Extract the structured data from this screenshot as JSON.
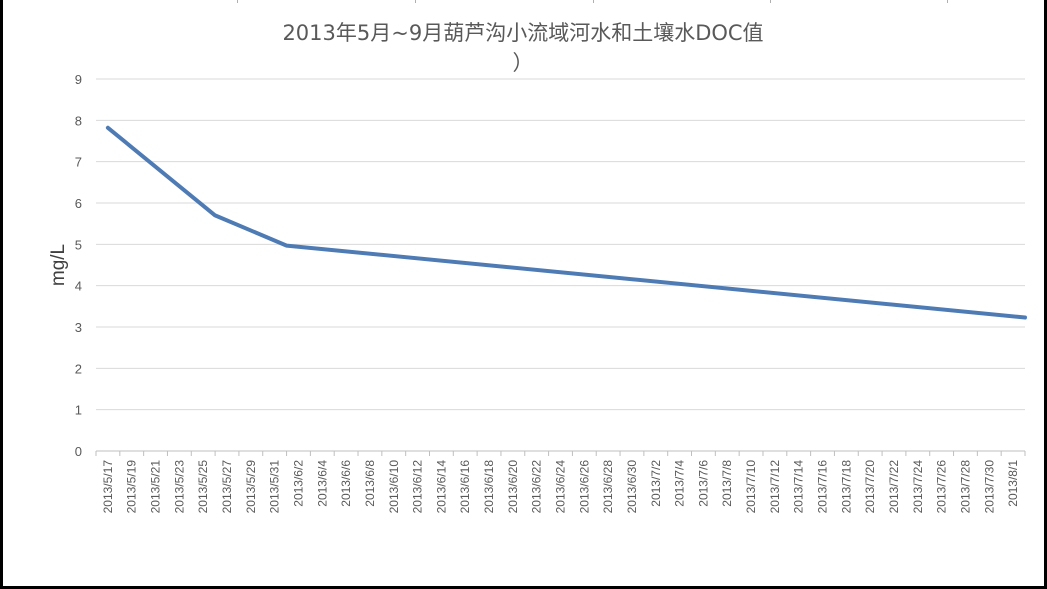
{
  "chart_data": {
    "type": "line",
    "title": "2013年5月~9月葫芦沟小流域河水和土壤水DOC值（ ）",
    "title_lines": [
      "2013年5月~9月葫芦沟小流域河水和土壤水DOC值",
      "）"
    ],
    "xlabel": "",
    "ylabel": "mg/L",
    "ylim": [
      0,
      9
    ],
    "yticks": [
      0,
      1,
      2,
      3,
      4,
      5,
      6,
      7,
      8,
      9
    ],
    "grid": true,
    "legend": "none",
    "categories": [
      "2013/5/17",
      "2013/5/19",
      "2013/5/21",
      "2013/5/23",
      "2013/5/25",
      "2013/5/27",
      "2013/5/29",
      "2013/5/31",
      "2013/6/2",
      "2013/6/4",
      "2013/6/6",
      "2013/6/8",
      "2013/6/10",
      "2013/6/12",
      "2013/6/14",
      "2013/6/16",
      "2013/6/18",
      "2013/6/20",
      "2013/6/22",
      "2013/6/24",
      "2013/6/26",
      "2013/6/28",
      "2013/6/30",
      "2013/7/2",
      "2013/7/4",
      "2013/7/6",
      "2013/7/8",
      "2013/7/10",
      "2013/7/12",
      "2013/7/14",
      "2013/7/16",
      "2013/7/18",
      "2013/7/20",
      "2013/7/22",
      "2013/7/24",
      "2013/7/26",
      "2013/7/28",
      "2013/7/30",
      "2013/8/1"
    ],
    "series": [
      {
        "color": "#4e7bb4",
        "points": [
          {
            "x": "2013/5/17",
            "y": 7.82
          },
          {
            "x": "2013/5/26",
            "y": 5.7
          },
          {
            "x": "2013/6/1",
            "y": 4.97
          },
          {
            "x": "2013/8/2",
            "y": 3.23
          }
        ]
      }
    ]
  },
  "colors": {
    "line": "#4e7bb4",
    "grid": "#d9d9d9",
    "axis": "#bfbfbf",
    "text": "#595959"
  }
}
